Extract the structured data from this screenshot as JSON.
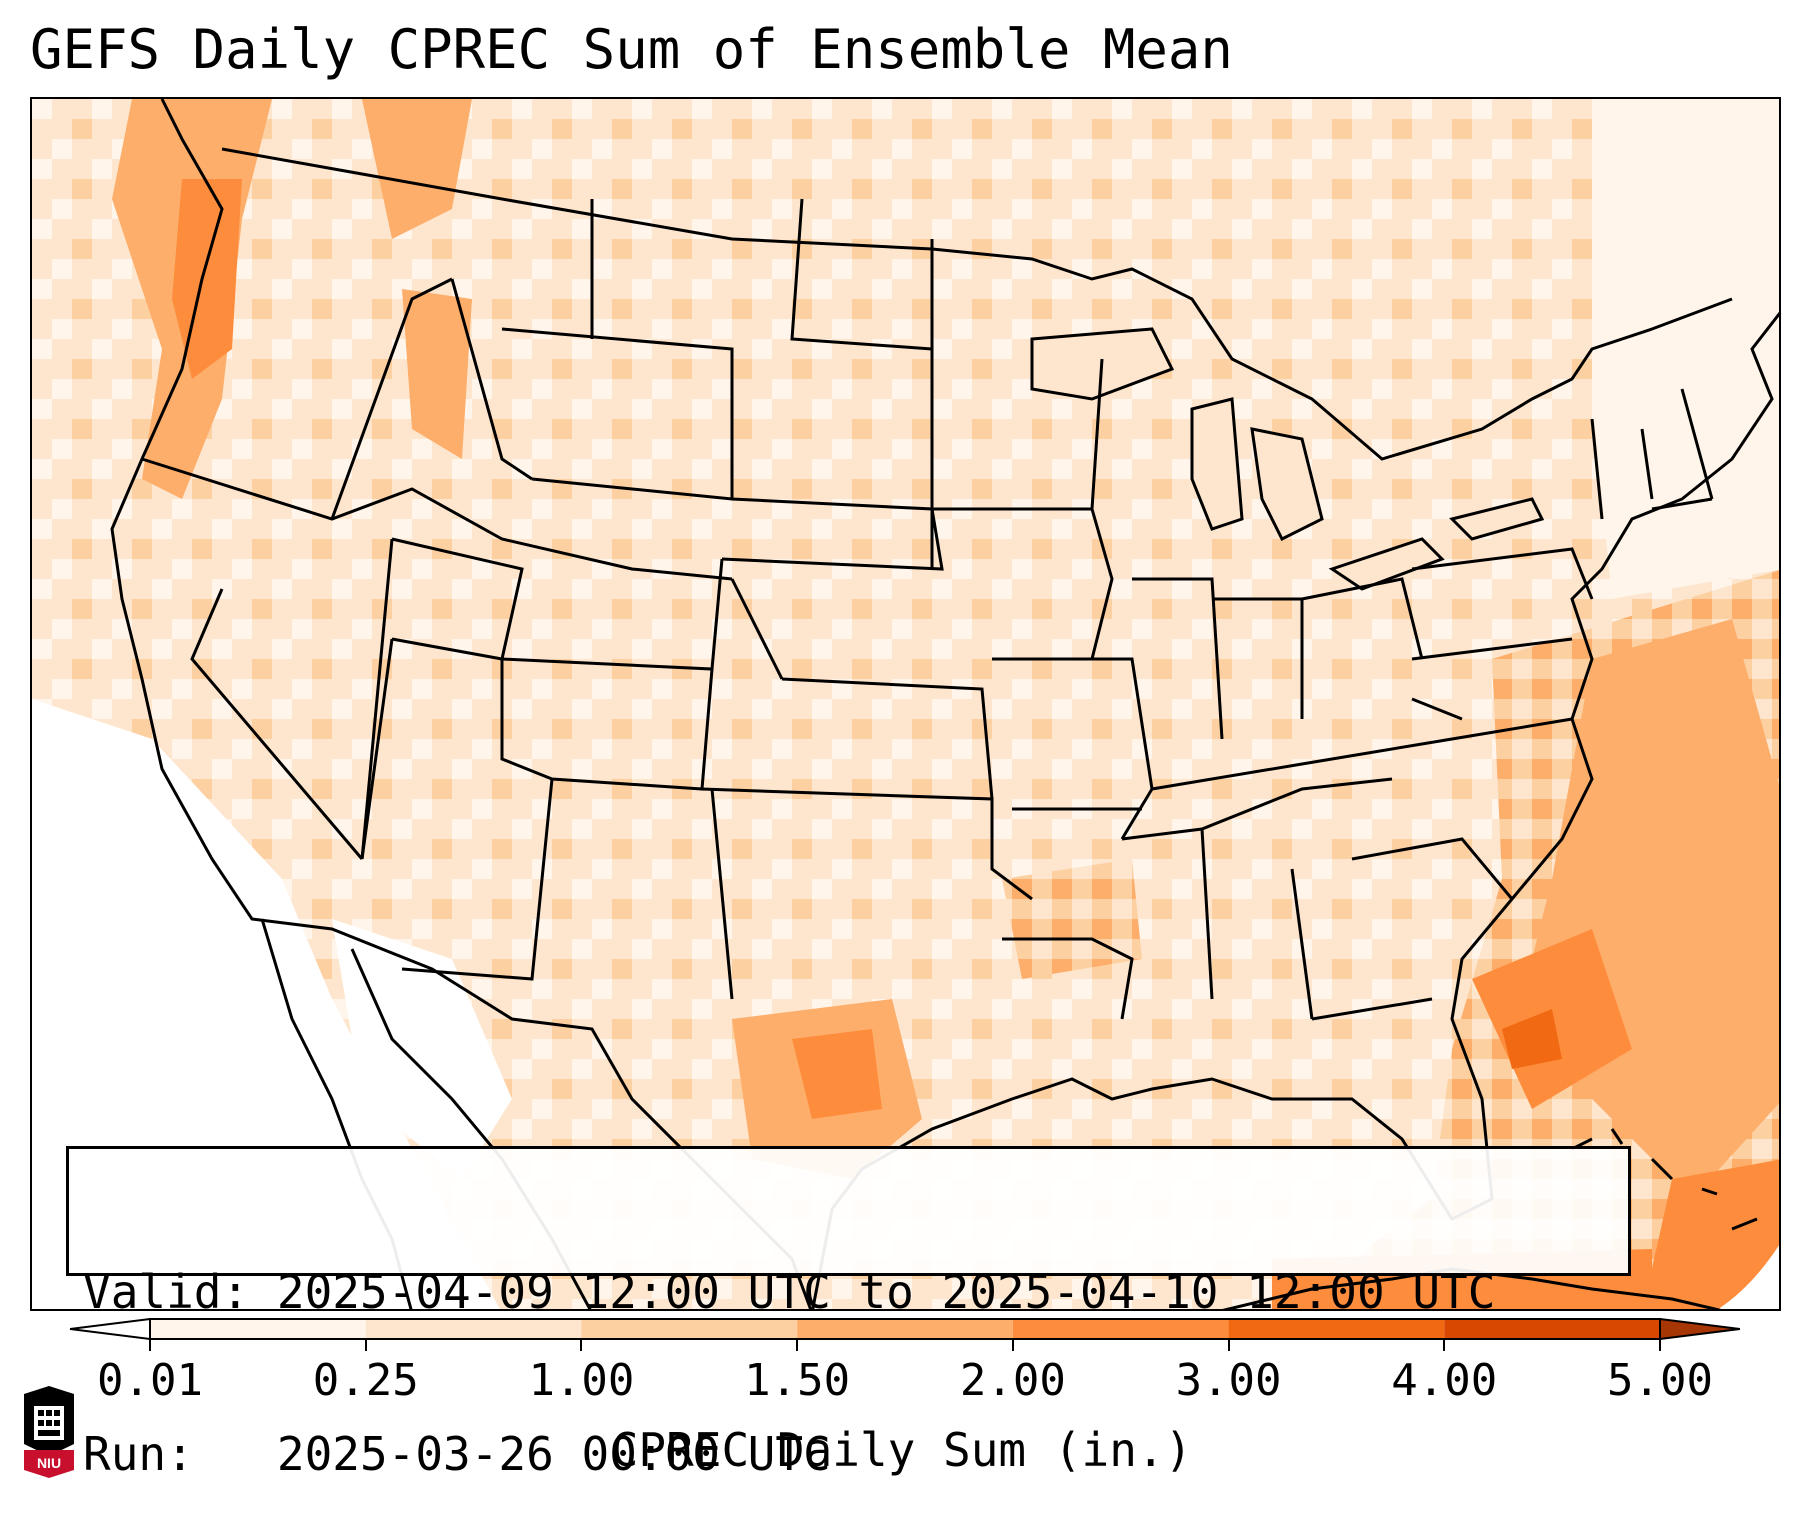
{
  "title": "GEFS Daily CPREC Sum of Ensemble Mean",
  "info": {
    "valid_label": "Valid:",
    "valid_value": "2025-04-09 12:00 UTC to 2025-04-10 12:00 UTC",
    "run_label": "Run:",
    "run_value": "2025-03-26 00:00 UTC"
  },
  "colorbar": {
    "label": "CPREC Daily Sum (in.)",
    "ticks": [
      "0.01",
      "0.25",
      "1.00",
      "1.50",
      "2.00",
      "3.00",
      "4.00",
      "5.00"
    ],
    "colors": [
      "#fff5eb",
      "#fee6ce",
      "#fdd0a2",
      "#fdae6b",
      "#fd8d3c",
      "#f16913",
      "#d94801",
      "#a63603"
    ]
  },
  "logo": {
    "text": "NIU"
  },
  "map": {
    "region": "Contiguous United States",
    "fill_colors": {
      "none": "#ffffff",
      "trace": "#fff5eb",
      "light": "#fee6ce",
      "moderate": "#fdd0a2",
      "heavy": "#fdae6b",
      "very_heavy": "#fd8d3c",
      "extreme": "#f16913"
    },
    "border_color": "#000000"
  }
}
